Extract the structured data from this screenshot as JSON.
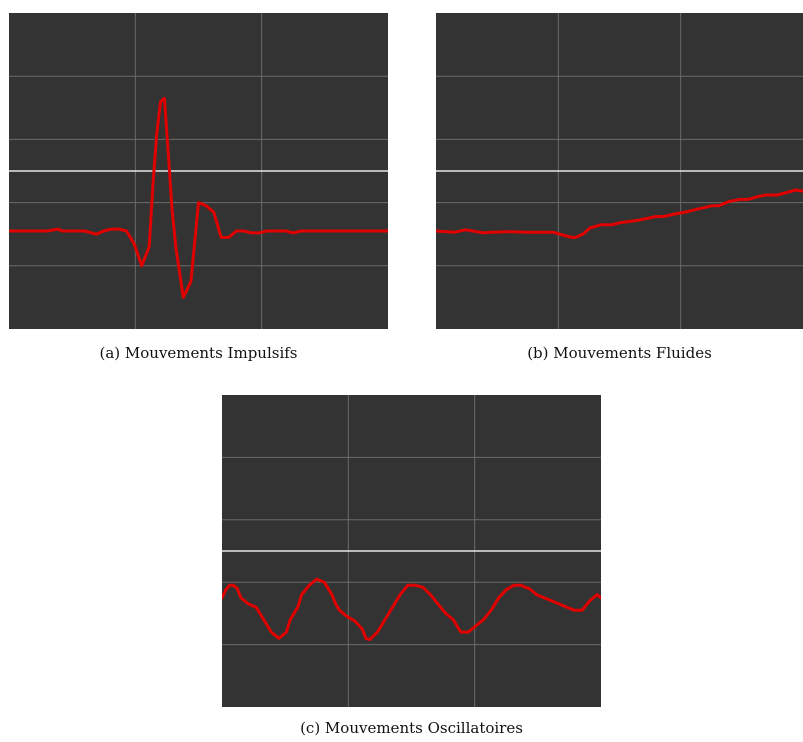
{
  "colors": {
    "background": "#333333",
    "grid": "#6b6b6b",
    "zero_line": "#e6e6e6",
    "signal": "#e00000"
  },
  "chart_data": [
    {
      "type": "line",
      "caption": "(a) Mouvements Impulsifs",
      "grid": true,
      "x_divisions": 3,
      "y_divisions": 5,
      "xlim": [
        0,
        100
      ],
      "ylim": [
        -2.5,
        2.5
      ],
      "series": [
        {
          "x": [
            0,
            5,
            10,
            13,
            14,
            16,
            20,
            23,
            25,
            27,
            29,
            31,
            33,
            35,
            37,
            38,
            39,
            40,
            41,
            42,
            43,
            44,
            46,
            48,
            50,
            52,
            54,
            56,
            58,
            60,
            62,
            64,
            66,
            68,
            70,
            73,
            75,
            77,
            80,
            83,
            86,
            90,
            95,
            100
          ],
          "y": [
            -0.95,
            -0.95,
            -0.95,
            -0.92,
            -0.95,
            -0.95,
            -0.95,
            -1.0,
            -0.95,
            -0.92,
            -0.92,
            -0.95,
            -1.15,
            -1.5,
            -1.2,
            -0.2,
            0.6,
            1.1,
            1.15,
            0.3,
            -0.6,
            -1.2,
            -2.0,
            -1.75,
            -0.5,
            -0.55,
            -0.65,
            -1.05,
            -1.05,
            -0.95,
            -0.95,
            -0.98,
            -0.98,
            -0.95,
            -0.95,
            -0.95,
            -0.98,
            -0.95,
            -0.95,
            -0.95,
            -0.95,
            -0.95,
            -0.95,
            -0.95
          ]
        }
      ]
    },
    {
      "type": "line",
      "caption": "(b) Mouvements Fluides",
      "grid": true,
      "x_divisions": 3,
      "y_divisions": 5,
      "xlim": [
        0,
        100
      ],
      "ylim": [
        -2.5,
        2.5
      ],
      "series": [
        {
          "x": [
            0,
            5,
            8,
            10,
            13,
            15,
            20,
            25,
            30,
            32,
            35,
            37,
            38,
            40,
            42,
            45,
            48,
            50,
            55,
            60,
            62,
            65,
            68,
            70,
            73,
            75,
            77,
            80,
            83,
            85,
            88,
            90,
            93,
            95,
            98,
            100
          ],
          "y": [
            -0.95,
            -0.97,
            -0.93,
            -0.95,
            -0.98,
            -0.97,
            -0.96,
            -0.97,
            -0.97,
            -0.97,
            -1.02,
            -1.05,
            -1.05,
            -1.0,
            -0.9,
            -0.85,
            -0.85,
            -0.82,
            -0.78,
            -0.72,
            -0.72,
            -0.68,
            -0.65,
            -0.62,
            -0.58,
            -0.55,
            -0.55,
            -0.48,
            -0.45,
            -0.45,
            -0.4,
            -0.38,
            -0.38,
            -0.35,
            -0.3,
            -0.32
          ]
        }
      ]
    },
    {
      "type": "line",
      "caption": "(c) Mouvements Oscillatoires",
      "grid": true,
      "x_divisions": 3,
      "y_divisions": 5,
      "xlim": [
        0,
        100
      ],
      "ylim": [
        -2.5,
        2.5
      ],
      "series": [
        {
          "x": [
            0,
            1,
            2,
            3,
            4,
            5,
            7,
            9,
            11,
            13,
            14,
            15,
            17,
            18,
            20,
            21,
            23,
            25,
            27,
            29,
            30,
            31,
            33,
            35,
            37,
            38,
            39,
            41,
            43,
            45,
            47,
            49,
            51,
            53,
            55,
            57,
            59,
            61,
            62,
            63,
            64,
            65,
            67,
            69,
            71,
            73,
            75,
            77,
            79,
            80,
            81,
            83,
            85,
            87,
            89,
            91,
            93,
            95,
            97,
            99,
            100
          ],
          "y": [
            -0.75,
            -0.62,
            -0.55,
            -0.55,
            -0.6,
            -0.75,
            -0.85,
            -0.9,
            -1.1,
            -1.3,
            -1.35,
            -1.4,
            -1.3,
            -1.1,
            -0.9,
            -0.7,
            -0.55,
            -0.45,
            -0.5,
            -0.7,
            -0.85,
            -0.95,
            -1.05,
            -1.12,
            -1.25,
            -1.4,
            -1.42,
            -1.3,
            -1.1,
            -0.9,
            -0.7,
            -0.55,
            -0.55,
            -0.58,
            -0.7,
            -0.85,
            -1.0,
            -1.1,
            -1.2,
            -1.3,
            -1.3,
            -1.3,
            -1.2,
            -1.1,
            -0.95,
            -0.75,
            -0.62,
            -0.55,
            -0.55,
            -0.58,
            -0.6,
            -0.7,
            -0.75,
            -0.8,
            -0.85,
            -0.9,
            -0.95,
            -0.95,
            -0.8,
            -0.7,
            -0.75
          ]
        }
      ]
    }
  ]
}
